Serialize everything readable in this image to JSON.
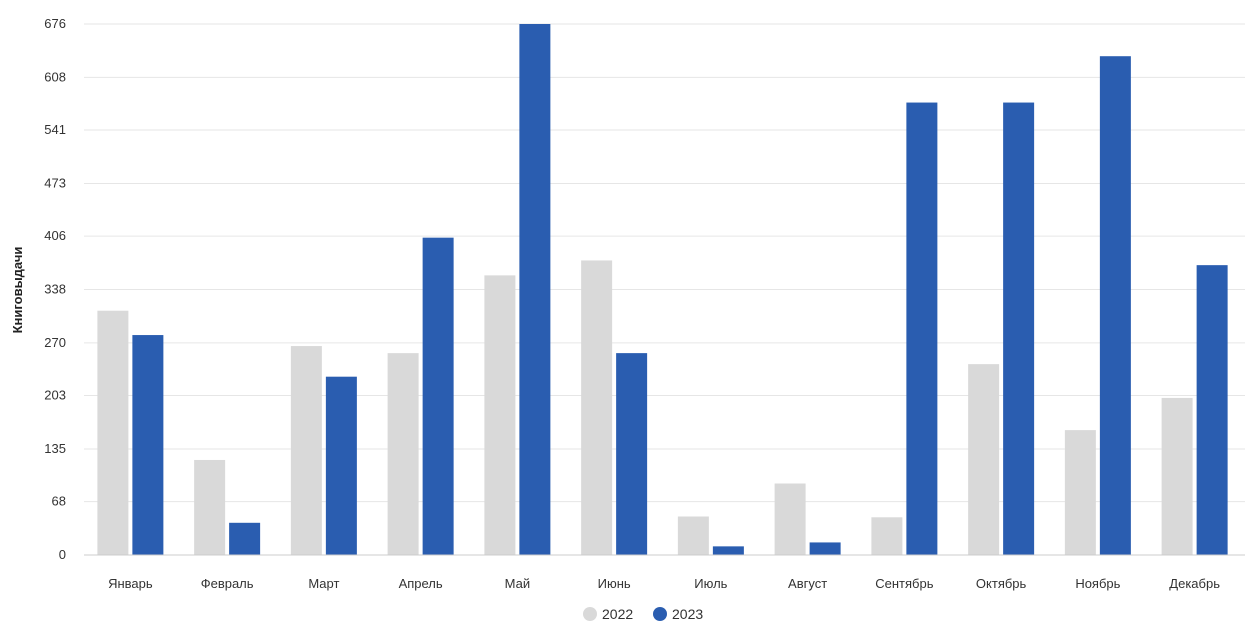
{
  "chart_data": {
    "type": "bar",
    "title": "",
    "xlabel": "",
    "ylabel": "Книговыдачи",
    "categories": [
      "Январь",
      "Февраль",
      "Март",
      "Апрель",
      "Май",
      "Июнь",
      "Июль",
      "Август",
      "Сентябрь",
      "Октябрь",
      "Ноябрь",
      "Декабрь"
    ],
    "series": [
      {
        "name": "2022",
        "color": "#d9d9d9",
        "values": [
          311,
          121,
          266,
          257,
          356,
          375,
          49,
          91,
          48,
          243,
          159,
          200
        ]
      },
      {
        "name": "2023",
        "color": "#2a5db0",
        "values": [
          280,
          41,
          227,
          404,
          676,
          257,
          11,
          16,
          576,
          576,
          635,
          369
        ]
      }
    ],
    "ylim": [
      0,
      676
    ],
    "yticks": [
      "0",
      "68",
      "135",
      "203",
      "270",
      "338",
      "406",
      "473",
      "541",
      "608",
      "676"
    ],
    "grid": true,
    "legend_position": "bottom-center"
  }
}
